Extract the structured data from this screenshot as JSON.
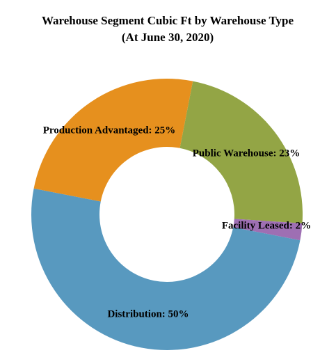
{
  "chart_data": {
    "type": "donut",
    "title": "Warehouse Segment Cubic Ft by Warehouse Type",
    "subtitle": "(At June 30, 2020)",
    "values": [
      23,
      2,
      50,
      25
    ],
    "value_labels": [
      "Public Warehouse: 23%",
      "Facility Leased: 2%",
      "Distribution: 50%",
      "Production Advantaged: 25%"
    ],
    "colors": [
      "#93a545",
      "#9e6fb3",
      "#5899bf",
      "#e6901e"
    ]
  }
}
